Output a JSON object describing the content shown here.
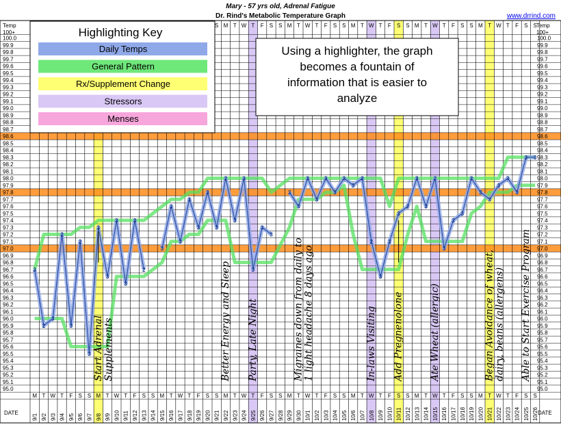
{
  "header": {
    "title1": "Mary - 57 yrs old, Adrenal Fatigue",
    "title2": "Dr. Rind's Metabolic Temperature Graph",
    "url": "www.drrind.com",
    "temp_label_left": "Temp",
    "temp_label_right": "Temp",
    "top_left": "100+",
    "top_right": "100+",
    "date_label_left": "DATE",
    "date_label_right": "DATE"
  },
  "key": {
    "title": "Highlighting Key",
    "items": [
      {
        "label": "Daily Temps",
        "color": "#8fa8e8"
      },
      {
        "label": "General Pattern",
        "color": "#6fe87a"
      },
      {
        "label": "Rx/Supplement Change",
        "color": "#ffff73"
      },
      {
        "label": "Stressors",
        "color": "#d9c8f5"
      },
      {
        "label": "Menses",
        "color": "#f7a6dc"
      }
    ]
  },
  "callout": {
    "lines": [
      "Using a highlighter, the graph",
      "becomes a fountain of",
      "information that is easier to",
      "analyze"
    ]
  },
  "chart_data": {
    "type": "line",
    "yaxis": {
      "min": 95.0,
      "max": 100.0,
      "step": 0.1,
      "labels": [
        "100.0",
        "99.9",
        "99.8",
        "99.7",
        "99.6",
        "99.5",
        "99.4",
        "99.3",
        "99.2",
        "99.1",
        "99.0",
        "98.9",
        "98.8",
        "98.7",
        "98.6",
        "98.5",
        "98.4",
        "98.3",
        "98.2",
        "98.1",
        "98.0",
        "97.9",
        "97.8",
        "97.7",
        "97.6",
        "97.5",
        "97.4",
        "97.3",
        "97.2",
        "97.1",
        "97.0",
        "96.9",
        "96.8",
        "96.7",
        "96.6",
        "96.5",
        "96.4",
        "96.3",
        "96.2",
        "96.1",
        "96.0",
        "95.9",
        "95.8",
        "95.7",
        "95.6",
        "95.5",
        "95.4",
        "95.3",
        "95.2",
        "95.1",
        "95.0"
      ]
    },
    "reference_lines": [
      98.6,
      97.8,
      97.0
    ],
    "dates": [
      "9/1",
      "9/2",
      "9/3",
      "9/4",
      "9/5",
      "9/6",
      "9/7",
      "9/8",
      "9/9",
      "9/10",
      "9/11",
      "9/12",
      "9/13",
      "9/14",
      "9/15",
      "9/16",
      "9/17",
      "9/18",
      "9/19",
      "9/20",
      "9/21",
      "9/22",
      "9/23",
      "9/24",
      "9/25",
      "9/26",
      "9/27",
      "9/28",
      "9/29",
      "9/30",
      "10/1",
      "10/2",
      "10/3",
      "10/4",
      "10/5",
      "10/6",
      "10/7",
      "10/8",
      "10/9",
      "10/10",
      "10/11",
      "10/12",
      "10/13",
      "10/14",
      "10/15",
      "10/16",
      "10/17",
      "10/18",
      "10/19",
      "10/20",
      "10/21",
      "10/22",
      "10/23",
      "10/24",
      "10/25",
      "10/26"
    ],
    "weekdays": [
      "M",
      "T",
      "W",
      "T",
      "F",
      "S",
      "S",
      "M",
      "T",
      "W",
      "T",
      "F",
      "S",
      "S",
      "M",
      "T",
      "W",
      "T",
      "F",
      "S",
      "S",
      "M",
      "T",
      "W",
      "T",
      "F",
      "S",
      "S",
      "M",
      "T",
      "W",
      "T",
      "F",
      "S",
      "S",
      "M",
      "T",
      "W",
      "T",
      "F",
      "S",
      "S",
      "M",
      "T",
      "W",
      "T",
      "F",
      "S",
      "S",
      "M",
      "T",
      "W",
      "T",
      "F",
      "S",
      "S"
    ],
    "series": [
      {
        "values": [
          96.7,
          95.9,
          96.0,
          97.2,
          95.9,
          97.1,
          95.5,
          97.3,
          96.6,
          97.4,
          96.5,
          97.4,
          96.7,
          null,
          97.0,
          97.6,
          97.1,
          97.7,
          97.3,
          97.8,
          97.3,
          98.0,
          97.4,
          98.0,
          96.7,
          97.3,
          97.2,
          null,
          97.8,
          97.6,
          98.0,
          97.7,
          98.0,
          97.8,
          98.0,
          97.9,
          98.0,
          97.1,
          96.6,
          97.1,
          97.5,
          97.6,
          98.0,
          97.6,
          98.0,
          97.0,
          97.4,
          97.5,
          98.0,
          97.8,
          97.7,
          97.9,
          98.0,
          97.8,
          98.3,
          98.3
        ],
        "labels": [
          "3",
          "2",
          "3",
          "2",
          "3",
          "2",
          "3",
          "3",
          "3",
          "3",
          "3",
          "3",
          "2",
          "",
          "3",
          "3",
          "3",
          "3",
          "3",
          "3",
          "3",
          "2",
          "3",
          "3",
          "3",
          "3",
          "3",
          "",
          "3",
          "3",
          "3",
          "3",
          "3",
          "3",
          "3",
          "3",
          "2",
          "2",
          "3",
          "3",
          "3",
          "2",
          "3",
          "3",
          "2",
          "3",
          "3",
          "3",
          "2",
          "3",
          "3",
          "3",
          "3",
          "3",
          "3",
          "3"
        ]
      }
    ],
    "highlighted_columns": [
      {
        "date": "9/8",
        "type": "Rx/Supplement Change"
      },
      {
        "date": "9/25",
        "type": "Stressors"
      },
      {
        "date": "10/8",
        "type": "Stressors"
      },
      {
        "date": "10/11",
        "type": "Rx/Supplement Change"
      },
      {
        "date": "10/15",
        "type": "Stressors"
      },
      {
        "date": "10/21",
        "type": "Rx/Supplement Change"
      }
    ],
    "annotations": [
      {
        "date": "9/8",
        "lines": [
          "Start Adrenal",
          "Supplements"
        ]
      },
      {
        "date": "9/22",
        "lines": [
          "Better Energy and Sleep"
        ]
      },
      {
        "date": "9/25",
        "lines": [
          "Party, Late Night"
        ]
      },
      {
        "date": "9/30",
        "lines": [
          "Migraines down from daily to",
          "1 light headache 8 days ago"
        ]
      },
      {
        "date": "10/8",
        "lines": [
          "In-laws Visiting"
        ]
      },
      {
        "date": "10/11",
        "lines": [
          "Add Pregnenolone"
        ]
      },
      {
        "date": "10/15",
        "lines": [
          "Ate Wheat (allergic)"
        ]
      },
      {
        "date": "10/21",
        "lines": [
          "Began Avoidance of wheat,",
          "dairy, beans (allergens)"
        ]
      },
      {
        "date": "10/25",
        "lines": [
          "Able to Start Exercise Program"
        ]
      }
    ]
  }
}
